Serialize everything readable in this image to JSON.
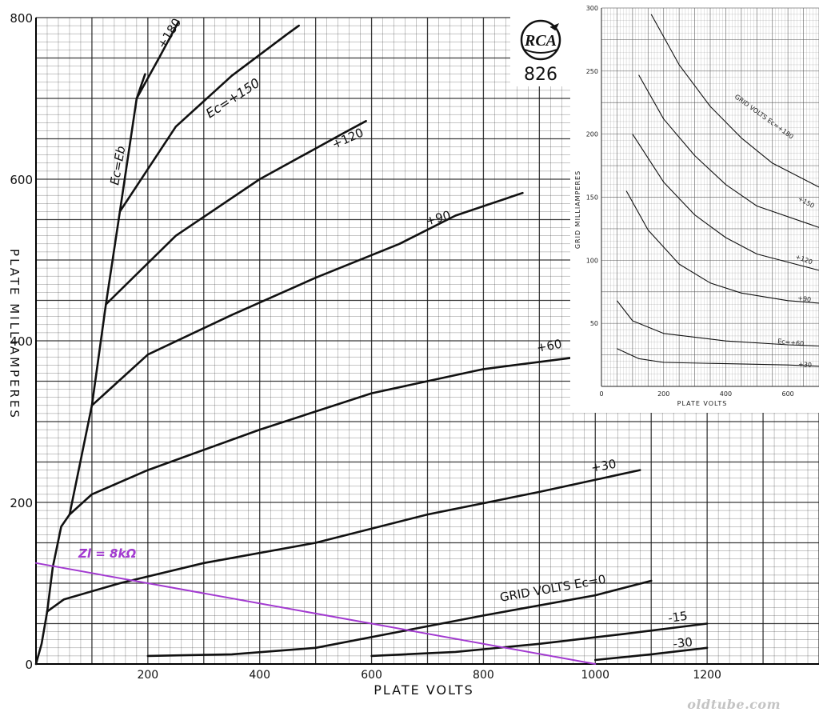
{
  "chart_data": [
    {
      "type": "line",
      "title": "",
      "xlabel": "PLATE VOLTS",
      "ylabel": "PLATE MILLIAMPERES",
      "xlim": [
        0,
        1400
      ],
      "ylim": [
        0,
        800
      ],
      "x_ticks": [
        200,
        400,
        600,
        800,
        1000,
        1200
      ],
      "y_ticks": [
        0,
        200,
        400,
        600,
        800
      ],
      "grid": true,
      "series": [
        {
          "name": "Ec=Eb",
          "points": [
            [
              0,
              0
            ],
            [
              10,
              25
            ],
            [
              20,
              65
            ],
            [
              30,
              120
            ],
            [
              45,
              170
            ],
            [
              60,
              185
            ],
            [
              100,
              320
            ],
            [
              125,
              445
            ],
            [
              150,
              560
            ],
            [
              180,
              700
            ],
            [
              195,
              730
            ]
          ]
        },
        {
          "name": "+180",
          "points": [
            [
              180,
              700
            ],
            [
              220,
              750
            ],
            [
              255,
              795
            ]
          ]
        },
        {
          "name": "+150",
          "points": [
            [
              150,
              560
            ],
            [
              250,
              665
            ],
            [
              350,
              728
            ],
            [
              450,
              780
            ],
            [
              470,
              790
            ]
          ]
        },
        {
          "name": "+120",
          "points": [
            [
              125,
              445
            ],
            [
              250,
              530
            ],
            [
              400,
              600
            ],
            [
              550,
              657
            ],
            [
              590,
              672
            ]
          ]
        },
        {
          "name": "+90",
          "points": [
            [
              100,
              320
            ],
            [
              200,
              383
            ],
            [
              350,
              432
            ],
            [
              500,
              478
            ],
            [
              650,
              520
            ],
            [
              750,
              555
            ],
            [
              870,
              583
            ]
          ]
        },
        {
          "name": "+60",
          "points": [
            [
              60,
              185
            ],
            [
              100,
              210
            ],
            [
              200,
              240
            ],
            [
              400,
              290
            ],
            [
              600,
              335
            ],
            [
              800,
              365
            ],
            [
              970,
              380
            ]
          ]
        },
        {
          "name": "+30",
          "points": [
            [
              20,
              65
            ],
            [
              50,
              80
            ],
            [
              150,
              100
            ],
            [
              300,
              125
            ],
            [
              500,
              150
            ],
            [
              700,
              185
            ],
            [
              900,
              213
            ],
            [
              1080,
              240
            ]
          ]
        },
        {
          "name": "GRID VOLTS EC=0",
          "points": [
            [
              200,
              10
            ],
            [
              350,
              12
            ],
            [
              500,
              20
            ],
            [
              650,
              40
            ],
            [
              800,
              60
            ],
            [
              1000,
              85
            ],
            [
              1100,
              103
            ]
          ]
        },
        {
          "name": "-15",
          "points": [
            [
              600,
              10
            ],
            [
              750,
              15
            ],
            [
              900,
              25
            ],
            [
              1050,
              37
            ],
            [
              1200,
              50
            ]
          ]
        },
        {
          "name": "-30",
          "points": [
            [
              1000,
              5
            ],
            [
              1100,
              12
            ],
            [
              1200,
              20
            ]
          ]
        },
        {
          "name": "Zl = 8kΩ",
          "points": [
            [
              0,
              125
            ],
            [
              1000,
              0
            ]
          ]
        }
      ],
      "curve_labels": [
        "+180",
        "Ec=+150",
        "+120",
        "+90",
        "+60",
        "+30",
        "GRID VOLTS Ec=0",
        "-15",
        "-30",
        "Ec=Eb"
      ],
      "annotation": "Zl = 8kΩ",
      "load_line_color": "#a23ad0"
    },
    {
      "type": "line",
      "title": "",
      "xlabel": "PLATE VOLTS",
      "ylabel": "GRID MILLIAMPERES",
      "xlim": [
        0,
        700
      ],
      "ylim": [
        0,
        300
      ],
      "x_ticks": [
        0,
        200,
        400,
        600
      ],
      "y_ticks": [
        50,
        100,
        150,
        200,
        250,
        300
      ],
      "grid": true,
      "series": [
        {
          "name": "+180",
          "points": [
            [
              160,
              295
            ],
            [
              250,
              255
            ],
            [
              350,
              222
            ],
            [
              450,
              197
            ],
            [
              550,
              177
            ],
            [
              700,
              158
            ]
          ]
        },
        {
          "name": "+150",
          "points": [
            [
              120,
              247
            ],
            [
              200,
              212
            ],
            [
              300,
              183
            ],
            [
              400,
              160
            ],
            [
              500,
              143
            ],
            [
              700,
              126
            ]
          ]
        },
        {
          "name": "+120",
          "points": [
            [
              100,
              200
            ],
            [
              200,
              162
            ],
            [
              300,
              136
            ],
            [
              400,
              118
            ],
            [
              500,
              105
            ],
            [
              700,
              92
            ]
          ]
        },
        {
          "name": "+90",
          "points": [
            [
              80,
              155
            ],
            [
              150,
              124
            ],
            [
              250,
              97
            ],
            [
              350,
              82
            ],
            [
              450,
              74
            ],
            [
              600,
              68
            ],
            [
              700,
              66
            ]
          ]
        },
        {
          "name": "+60",
          "points": [
            [
              50,
              68
            ],
            [
              100,
              52
            ],
            [
              200,
              42
            ],
            [
              400,
              36
            ],
            [
              600,
              33
            ],
            [
              700,
              32
            ]
          ]
        },
        {
          "name": "+30",
          "points": [
            [
              50,
              30
            ],
            [
              120,
              22
            ],
            [
              200,
              19
            ],
            [
              400,
              18
            ],
            [
              600,
              17
            ],
            [
              700,
              16
            ]
          ]
        }
      ],
      "curve_labels": [
        "GRID VOLTS Ec=+180",
        "+150",
        "+120",
        "+90",
        "Ec=+60",
        "+30"
      ]
    }
  ],
  "logo": {
    "brand": "RCA",
    "model": "826"
  },
  "watermark": "oldtube.com"
}
